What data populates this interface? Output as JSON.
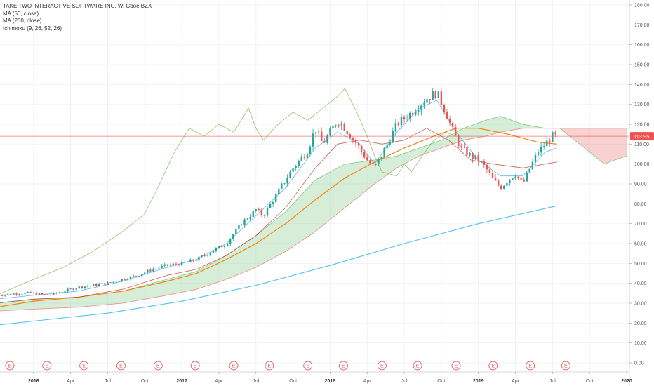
{
  "header": {
    "symbol_line": "TAKE TWO INTERACTIVE SOFTWARE INC, W, Cboe BZX",
    "indicators": [
      "MA (50, close)",
      "MA (200, close)",
      "Ichimoku (9, 26, 52, 26)"
    ]
  },
  "colors": {
    "up": "#26a69a",
    "down": "#ef5350",
    "ma50": "#f57c00",
    "ma200": "#4fc3f7",
    "ichimoku_tenkan": "#2196f3",
    "ichimoku_kijun": "#b71c1c",
    "ichimoku_lagging": "#7cb342",
    "cloud_bull": "#a5d6a7",
    "cloud_bear": "#ef9a9a",
    "price_line": "#ef5350"
  },
  "chart_data": {
    "type": "candlestick",
    "price_axis": {
      "ticks": [
        "180.00",
        "170.00",
        "160.00",
        "150.00",
        "140.00",
        "130.00",
        "120.00",
        "110.00",
        "100.00",
        "90.00",
        "80.00",
        "70.00",
        "60.00",
        "50.00",
        "40.00",
        "30.00",
        "20.00",
        "10.00",
        "0.00"
      ],
      "range": [
        0,
        180
      ]
    },
    "time_axis": {
      "labels": [
        {
          "text": "2016",
          "bold": true,
          "t": 2016.0
        },
        {
          "text": "Apr",
          "bold": false,
          "t": 2016.25
        },
        {
          "text": "Jul",
          "bold": false,
          "t": 2016.5
        },
        {
          "text": "Oct",
          "bold": false,
          "t": 2016.75
        },
        {
          "text": "2017",
          "bold": true,
          "t": 2017.0
        },
        {
          "text": "Apr",
          "bold": false,
          "t": 2017.25
        },
        {
          "text": "Jul",
          "bold": false,
          "t": 2017.5
        },
        {
          "text": "Oct",
          "bold": false,
          "t": 2017.75
        },
        {
          "text": "2018",
          "bold": true,
          "t": 2018.0
        },
        {
          "text": "Apr",
          "bold": false,
          "t": 2018.25
        },
        {
          "text": "Jul",
          "bold": false,
          "t": 2018.5
        },
        {
          "text": "Oct",
          "bold": false,
          "t": 2018.75
        },
        {
          "text": "2019",
          "bold": true,
          "t": 2019.0
        },
        {
          "text": "Apr",
          "bold": false,
          "t": 2019.25
        },
        {
          "text": "Jul",
          "bold": false,
          "t": 2019.5
        },
        {
          "text": "Oct",
          "bold": false,
          "t": 2019.75
        },
        {
          "text": "2020",
          "bold": true,
          "t": 2020.0
        }
      ]
    },
    "last_price": 113.95,
    "last_price_label": "113.95",
    "earnings_marker_label": "E",
    "earnings_dates": [
      2015.84,
      2016.09,
      2016.34,
      2016.59,
      2016.84,
      2017.09,
      2017.35,
      2017.59,
      2017.85,
      2018.09,
      2018.35,
      2018.59,
      2018.85,
      2019.1,
      2019.35,
      2019.59
    ],
    "price_path": [
      [
        2015.75,
        34
      ],
      [
        2015.9,
        35
      ],
      [
        2016.0,
        35
      ],
      [
        2016.1,
        34
      ],
      [
        2016.2,
        36
      ],
      [
        2016.3,
        38
      ],
      [
        2016.4,
        39
      ],
      [
        2016.5,
        40
      ],
      [
        2016.6,
        42
      ],
      [
        2016.7,
        44
      ],
      [
        2016.8,
        47
      ],
      [
        2016.9,
        49
      ],
      [
        2017.0,
        50
      ],
      [
        2017.1,
        52
      ],
      [
        2017.2,
        56
      ],
      [
        2017.3,
        60
      ],
      [
        2017.4,
        70
      ],
      [
        2017.5,
        77
      ],
      [
        2017.55,
        74
      ],
      [
        2017.65,
        86
      ],
      [
        2017.75,
        98
      ],
      [
        2017.85,
        107
      ],
      [
        2017.9,
        118
      ],
      [
        2017.95,
        110
      ],
      [
        2018.0,
        116
      ],
      [
        2018.05,
        122
      ],
      [
        2018.1,
        118
      ],
      [
        2018.18,
        110
      ],
      [
        2018.25,
        102
      ],
      [
        2018.3,
        98
      ],
      [
        2018.4,
        112
      ],
      [
        2018.45,
        120
      ],
      [
        2018.55,
        126
      ],
      [
        2018.65,
        133
      ],
      [
        2018.72,
        136
      ],
      [
        2018.78,
        126
      ],
      [
        2018.82,
        118
      ],
      [
        2018.88,
        108
      ],
      [
        2018.95,
        104
      ],
      [
        2019.0,
        102
      ],
      [
        2019.05,
        98
      ],
      [
        2019.1,
        92
      ],
      [
        2019.15,
        88
      ],
      [
        2019.2,
        92
      ],
      [
        2019.25,
        95
      ],
      [
        2019.3,
        90
      ],
      [
        2019.35,
        98
      ],
      [
        2019.4,
        106
      ],
      [
        2019.45,
        110
      ],
      [
        2019.5,
        114
      ],
      [
        2019.53,
        113.95
      ]
    ],
    "ma50_path": [
      [
        2015.75,
        28
      ],
      [
        2016.0,
        31
      ],
      [
        2016.3,
        33
      ],
      [
        2016.6,
        36
      ],
      [
        2016.9,
        41
      ],
      [
        2017.1,
        45
      ],
      [
        2017.3,
        52
      ],
      [
        2017.5,
        60
      ],
      [
        2017.7,
        70
      ],
      [
        2017.9,
        82
      ],
      [
        2018.1,
        93
      ],
      [
        2018.3,
        101
      ],
      [
        2018.5,
        108
      ],
      [
        2018.7,
        114
      ],
      [
        2018.85,
        118
      ],
      [
        2019.0,
        118
      ],
      [
        2019.2,
        115
      ],
      [
        2019.4,
        111
      ],
      [
        2019.53,
        110
      ]
    ],
    "ma200_path": [
      [
        2015.75,
        19
      ],
      [
        2016.0,
        21
      ],
      [
        2016.5,
        25
      ],
      [
        2017.0,
        31
      ],
      [
        2017.5,
        39
      ],
      [
        2018.0,
        49
      ],
      [
        2018.5,
        60
      ],
      [
        2019.0,
        70
      ],
      [
        2019.53,
        79
      ]
    ],
    "lagging_path": [
      [
        2015.75,
        34
      ],
      [
        2016.0,
        42
      ],
      [
        2016.2,
        48
      ],
      [
        2016.4,
        56
      ],
      [
        2016.6,
        66
      ],
      [
        2016.75,
        75
      ],
      [
        2016.85,
        90
      ],
      [
        2016.95,
        106
      ],
      [
        2017.05,
        118
      ],
      [
        2017.15,
        114
      ],
      [
        2017.25,
        120
      ],
      [
        2017.35,
        116
      ],
      [
        2017.4,
        122
      ],
      [
        2017.45,
        128
      ],
      [
        2017.5,
        118
      ],
      [
        2017.55,
        112
      ],
      [
        2017.65,
        120
      ],
      [
        2017.75,
        126
      ],
      [
        2017.85,
        122
      ],
      [
        2017.95,
        128
      ],
      [
        2018.05,
        134
      ],
      [
        2018.1,
        138
      ],
      [
        2018.18,
        126
      ],
      [
        2018.25,
        114
      ],
      [
        2018.3,
        104
      ],
      [
        2018.35,
        96
      ],
      [
        2018.45,
        94
      ],
      [
        2018.5,
        100
      ],
      [
        2018.55,
        96
      ],
      [
        2018.62,
        104
      ],
      [
        2018.7,
        112
      ],
      [
        2018.78,
        116
      ],
      [
        2018.85,
        113.95
      ]
    ],
    "tenkan_path": [
      [
        2015.75,
        32
      ],
      [
        2016.0,
        34
      ],
      [
        2016.3,
        36
      ],
      [
        2016.6,
        41
      ],
      [
        2016.9,
        48
      ],
      [
        2017.1,
        52
      ],
      [
        2017.3,
        60
      ],
      [
        2017.5,
        74
      ],
      [
        2017.7,
        88
      ],
      [
        2017.9,
        108
      ],
      [
        2018.05,
        116
      ],
      [
        2018.2,
        110
      ],
      [
        2018.3,
        100
      ],
      [
        2018.45,
        116
      ],
      [
        2018.6,
        128
      ],
      [
        2018.72,
        132
      ],
      [
        2018.85,
        116
      ],
      [
        2019.0,
        102
      ],
      [
        2019.15,
        94
      ],
      [
        2019.3,
        94
      ],
      [
        2019.45,
        106
      ],
      [
        2019.53,
        108
      ]
    ],
    "kijun_path": [
      [
        2015.75,
        30
      ],
      [
        2016.0,
        32
      ],
      [
        2016.3,
        33
      ],
      [
        2016.6,
        37
      ],
      [
        2016.9,
        44
      ],
      [
        2017.1,
        47
      ],
      [
        2017.3,
        54
      ],
      [
        2017.5,
        64
      ],
      [
        2017.7,
        78
      ],
      [
        2017.9,
        98
      ],
      [
        2018.05,
        110
      ],
      [
        2018.2,
        112
      ],
      [
        2018.35,
        110
      ],
      [
        2018.5,
        112
      ],
      [
        2018.65,
        118
      ],
      [
        2018.8,
        112
      ],
      [
        2018.95,
        102
      ],
      [
        2019.1,
        100
      ],
      [
        2019.3,
        98
      ],
      [
        2019.45,
        100
      ],
      [
        2019.53,
        101
      ]
    ],
    "cloud_top_path": [
      [
        2015.75,
        30
      ],
      [
        2016.0,
        32
      ],
      [
        2016.3,
        33
      ],
      [
        2016.6,
        36
      ],
      [
        2016.9,
        42
      ],
      [
        2017.1,
        46
      ],
      [
        2017.3,
        54
      ],
      [
        2017.5,
        64
      ],
      [
        2017.7,
        76
      ],
      [
        2017.9,
        92
      ],
      [
        2018.1,
        100
      ],
      [
        2018.3,
        102
      ],
      [
        2018.45,
        104
      ],
      [
        2018.6,
        108
      ],
      [
        2018.75,
        112
      ],
      [
        2018.9,
        118
      ],
      [
        2019.05,
        122
      ],
      [
        2019.15,
        124
      ],
      [
        2019.3,
        120
      ],
      [
        2019.45,
        118
      ],
      [
        2019.55,
        118
      ],
      [
        2019.65,
        112
      ],
      [
        2019.75,
        106
      ],
      [
        2019.85,
        100
      ],
      [
        2019.92,
        102
      ],
      [
        2020.0,
        104
      ]
    ],
    "cloud_bottom_path": [
      [
        2015.75,
        26
      ],
      [
        2016.0,
        27
      ],
      [
        2016.3,
        28
      ],
      [
        2016.6,
        30
      ],
      [
        2016.9,
        34
      ],
      [
        2017.1,
        37
      ],
      [
        2017.3,
        42
      ],
      [
        2017.5,
        48
      ],
      [
        2017.7,
        56
      ],
      [
        2017.9,
        66
      ],
      [
        2018.1,
        78
      ],
      [
        2018.3,
        90
      ],
      [
        2018.45,
        98
      ],
      [
        2018.6,
        104
      ],
      [
        2018.75,
        108
      ],
      [
        2018.9,
        112
      ],
      [
        2019.05,
        114
      ],
      [
        2019.15,
        116
      ],
      [
        2019.3,
        118
      ],
      [
        2019.45,
        118
      ],
      [
        2019.55,
        118
      ],
      [
        2019.65,
        118
      ],
      [
        2019.75,
        118
      ],
      [
        2019.85,
        118
      ],
      [
        2019.92,
        118
      ],
      [
        2020.0,
        118
      ]
    ],
    "cloud_bear_from": 2019.5
  }
}
